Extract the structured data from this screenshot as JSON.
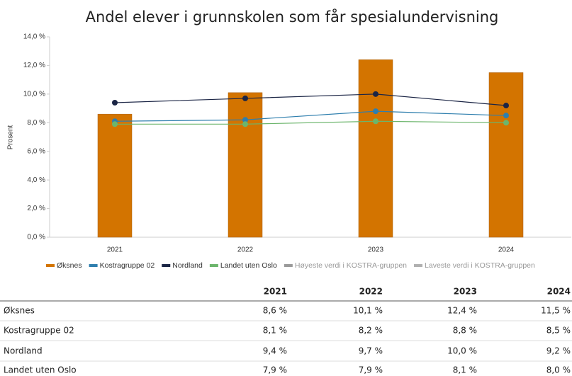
{
  "chart_data": {
    "type": "bar-line",
    "title": "Andel elever i grunnskolen som får spesialundervisning",
    "y_label": "Prosent",
    "categories": [
      "2021",
      "2022",
      "2023",
      "2024"
    ],
    "series": [
      {
        "name": "Øksnes",
        "color": "#d37400",
        "kind": "bar",
        "values": [
          8.6,
          10.1,
          12.4,
          11.5
        ]
      },
      {
        "name": "Kostragruppe 02",
        "color": "#2f7fae",
        "kind": "line",
        "values": [
          8.1,
          8.2,
          8.8,
          8.5
        ]
      },
      {
        "name": "Nordland",
        "color": "#1b2545",
        "kind": "line",
        "values": [
          9.4,
          9.7,
          10.0,
          9.2
        ]
      },
      {
        "name": "Landet uten Oslo",
        "color": "#6cb56c",
        "kind": "line",
        "values": [
          7.9,
          7.9,
          8.1,
          8.0
        ]
      },
      {
        "name": "Høyeste verdi i KOSTRA-gruppen",
        "color": "#9a9a9a",
        "kind": "line",
        "values": [
          null,
          null,
          null,
          null
        ]
      },
      {
        "name": "Laveste verdi i KOSTRA-gruppen",
        "color": "#b0b0b0",
        "kind": "line",
        "values": [
          null,
          null,
          null,
          null
        ]
      }
    ],
    "ylim": [
      0,
      14
    ],
    "yticks": [
      {
        "value": 0,
        "label": "0,0 %"
      },
      {
        "value": 2,
        "label": "2,0 %"
      },
      {
        "value": 4,
        "label": "4,0 %"
      },
      {
        "value": 6,
        "label": "6,0 %"
      },
      {
        "value": 8,
        "label": "8,0 %"
      },
      {
        "value": 10,
        "label": "10,0 %"
      },
      {
        "value": 12,
        "label": "12,0 %"
      },
      {
        "value": 14,
        "label": "14,0 %"
      }
    ],
    "grid": false,
    "legend": "bottom"
  },
  "table": {
    "columns": [
      "2021",
      "2022",
      "2023",
      "2024"
    ],
    "rows": [
      {
        "name": "Øksnes",
        "cells": [
          "8,6 %",
          "10,1 %",
          "12,4 %",
          "11,5 %"
        ]
      },
      {
        "name": "Kostragruppe 02",
        "cells": [
          "8,1 %",
          "8,2 %",
          "8,8 %",
          "8,5 %"
        ]
      },
      {
        "name": "Nordland",
        "cells": [
          "9,4 %",
          "9,7 %",
          "10,0 %",
          "9,2 %"
        ]
      },
      {
        "name": "Landet uten Oslo",
        "cells": [
          "7,9 %",
          "7,9 %",
          "8,1 %",
          "8,0 %"
        ]
      }
    ]
  }
}
